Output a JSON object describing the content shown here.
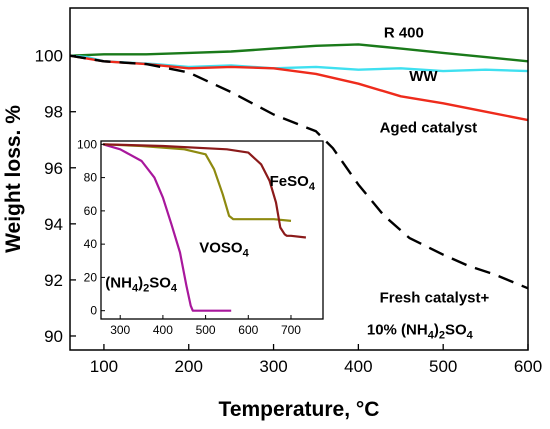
{
  "chart_data": [
    {
      "type": "line",
      "xlabel": "Temperature, °C",
      "ylabel": "Weight loss. %",
      "xlim": [
        60,
        600
      ],
      "ylim": [
        89.5,
        101.7
      ],
      "xticks": [
        100,
        200,
        300,
        400,
        500,
        600
      ],
      "yticks": [
        90,
        92,
        94,
        96,
        98,
        100
      ],
      "series": [
        {
          "name": "R 400",
          "color": "#1a7a1a",
          "dash": "solid",
          "x": [
            60,
            100,
            150,
            200,
            250,
            300,
            350,
            400,
            450,
            500,
            550,
            600
          ],
          "y": [
            100.0,
            100.05,
            100.05,
            100.1,
            100.15,
            100.25,
            100.35,
            100.4,
            100.25,
            100.1,
            99.95,
            99.8
          ]
        },
        {
          "name": "WW",
          "color": "#3fe0f0",
          "dash": "solid",
          "x": [
            60,
            80,
            100,
            130,
            160,
            200,
            250,
            300,
            350,
            400,
            450,
            500,
            550,
            600
          ],
          "y": [
            100.0,
            99.95,
            99.8,
            99.75,
            99.7,
            99.6,
            99.65,
            99.55,
            99.6,
            99.5,
            99.55,
            99.45,
            99.5,
            99.45
          ]
        },
        {
          "name": "Aged catalyst",
          "color": "#ee2b1c",
          "dash": "solid",
          "x": [
            60,
            100,
            150,
            200,
            250,
            300,
            350,
            400,
            450,
            500,
            550,
            600
          ],
          "y": [
            100.0,
            99.8,
            99.7,
            99.55,
            99.6,
            99.55,
            99.35,
            99.0,
            98.55,
            98.3,
            98.0,
            97.7
          ]
        },
        {
          "name": "Fresh catalyst+ 10% (NH4)2SO4",
          "color": "#000000",
          "dash": "long-dash",
          "x": [
            60,
            100,
            150,
            200,
            250,
            300,
            350,
            370,
            400,
            430,
            460,
            500,
            530,
            560,
            600
          ],
          "y": [
            100.0,
            99.8,
            99.7,
            99.4,
            98.7,
            97.9,
            97.3,
            96.7,
            95.4,
            94.3,
            93.5,
            92.9,
            92.5,
            92.2,
            91.7
          ]
        }
      ],
      "labels": [
        {
          "text": "R 400",
          "x": 430,
          "y": 100.65
        },
        {
          "text": "WW",
          "x": 460,
          "y": 99.1
        },
        {
          "text": "Aged catalyst",
          "x": 425,
          "y": 97.25
        },
        {
          "text": "Fresh catalyst+",
          "x": 425,
          "y": 91.2
        },
        {
          "text": "10% (NH4)2SO4",
          "x": 410,
          "y": 90.05
        }
      ]
    },
    {
      "type": "line",
      "xlim": [
        255,
        775
      ],
      "ylim": [
        -5,
        102
      ],
      "xticks": [
        300,
        400,
        500,
        600,
        700
      ],
      "yticks": [
        0,
        20,
        40,
        60,
        80,
        100
      ],
      "series": [
        {
          "name": "(NH4)2SO4",
          "color": "#a8179c",
          "x": [
            260,
            300,
            350,
            380,
            400,
            420,
            440,
            455,
            465,
            470,
            480,
            520,
            560
          ],
          "y": [
            100,
            97,
            90,
            80,
            68,
            52,
            35,
            15,
            3,
            0,
            0,
            0,
            0
          ]
        },
        {
          "name": "VOSO4",
          "color": "#8e8a10",
          "x": [
            260,
            350,
            450,
            500,
            520,
            540,
            555,
            565,
            580,
            620,
            660,
            700
          ],
          "y": [
            100,
            99,
            97,
            94,
            85,
            70,
            57,
            55,
            55,
            55,
            55,
            54
          ]
        },
        {
          "name": "FeSO4",
          "color": "#8b1a1a",
          "x": [
            260,
            400,
            550,
            600,
            630,
            650,
            665,
            675,
            685,
            690,
            700,
            735
          ],
          "y": [
            100,
            99,
            97,
            95,
            88,
            78,
            65,
            50,
            46,
            45,
            45,
            44
          ]
        }
      ],
      "labels": [
        {
          "text": "FeSO4",
          "x": 650,
          "y": 75
        },
        {
          "text": "VOSO4",
          "x": 485,
          "y": 35
        },
        {
          "text": "(NH4)2SO4",
          "x": 265,
          "y": 14
        }
      ]
    }
  ]
}
